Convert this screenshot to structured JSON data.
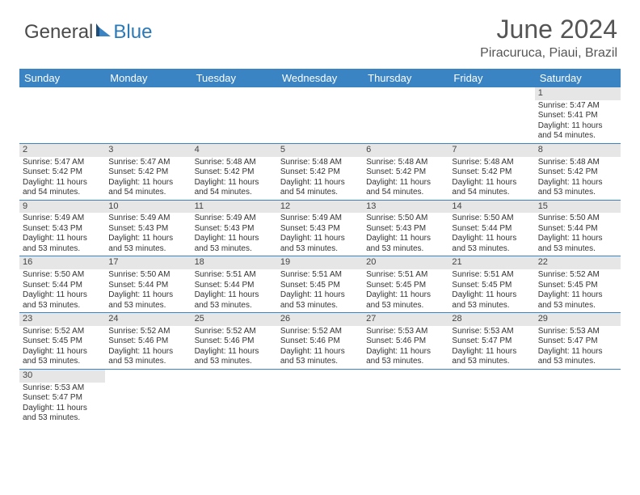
{
  "brand": {
    "part1": "General",
    "part2": "Blue"
  },
  "title": "June 2024",
  "location": "Piracuruca, Piaui, Brazil",
  "style": {
    "header_bg": "#3a84c4",
    "header_fg": "#ffffff",
    "daynum_bg": "#e6e6e6",
    "rule_color": "#3a84c4",
    "title_color": "#555555",
    "text_color": "#333333",
    "brand_gray": "#4a4a4a",
    "brand_blue": "#2a7ab8"
  },
  "day_names": [
    "Sunday",
    "Monday",
    "Tuesday",
    "Wednesday",
    "Thursday",
    "Friday",
    "Saturday"
  ],
  "weeks": [
    [
      null,
      null,
      null,
      null,
      null,
      null,
      {
        "n": "1",
        "sr": "5:47 AM",
        "ss": "5:41 PM",
        "dl": "11 hours and 54 minutes."
      }
    ],
    [
      {
        "n": "2",
        "sr": "5:47 AM",
        "ss": "5:42 PM",
        "dl": "11 hours and 54 minutes."
      },
      {
        "n": "3",
        "sr": "5:47 AM",
        "ss": "5:42 PM",
        "dl": "11 hours and 54 minutes."
      },
      {
        "n": "4",
        "sr": "5:48 AM",
        "ss": "5:42 PM",
        "dl": "11 hours and 54 minutes."
      },
      {
        "n": "5",
        "sr": "5:48 AM",
        "ss": "5:42 PM",
        "dl": "11 hours and 54 minutes."
      },
      {
        "n": "6",
        "sr": "5:48 AM",
        "ss": "5:42 PM",
        "dl": "11 hours and 54 minutes."
      },
      {
        "n": "7",
        "sr": "5:48 AM",
        "ss": "5:42 PM",
        "dl": "11 hours and 54 minutes."
      },
      {
        "n": "8",
        "sr": "5:48 AM",
        "ss": "5:42 PM",
        "dl": "11 hours and 53 minutes."
      }
    ],
    [
      {
        "n": "9",
        "sr": "5:49 AM",
        "ss": "5:43 PM",
        "dl": "11 hours and 53 minutes."
      },
      {
        "n": "10",
        "sr": "5:49 AM",
        "ss": "5:43 PM",
        "dl": "11 hours and 53 minutes."
      },
      {
        "n": "11",
        "sr": "5:49 AM",
        "ss": "5:43 PM",
        "dl": "11 hours and 53 minutes."
      },
      {
        "n": "12",
        "sr": "5:49 AM",
        "ss": "5:43 PM",
        "dl": "11 hours and 53 minutes."
      },
      {
        "n": "13",
        "sr": "5:50 AM",
        "ss": "5:43 PM",
        "dl": "11 hours and 53 minutes."
      },
      {
        "n": "14",
        "sr": "5:50 AM",
        "ss": "5:44 PM",
        "dl": "11 hours and 53 minutes."
      },
      {
        "n": "15",
        "sr": "5:50 AM",
        "ss": "5:44 PM",
        "dl": "11 hours and 53 minutes."
      }
    ],
    [
      {
        "n": "16",
        "sr": "5:50 AM",
        "ss": "5:44 PM",
        "dl": "11 hours and 53 minutes."
      },
      {
        "n": "17",
        "sr": "5:50 AM",
        "ss": "5:44 PM",
        "dl": "11 hours and 53 minutes."
      },
      {
        "n": "18",
        "sr": "5:51 AM",
        "ss": "5:44 PM",
        "dl": "11 hours and 53 minutes."
      },
      {
        "n": "19",
        "sr": "5:51 AM",
        "ss": "5:45 PM",
        "dl": "11 hours and 53 minutes."
      },
      {
        "n": "20",
        "sr": "5:51 AM",
        "ss": "5:45 PM",
        "dl": "11 hours and 53 minutes."
      },
      {
        "n": "21",
        "sr": "5:51 AM",
        "ss": "5:45 PM",
        "dl": "11 hours and 53 minutes."
      },
      {
        "n": "22",
        "sr": "5:52 AM",
        "ss": "5:45 PM",
        "dl": "11 hours and 53 minutes."
      }
    ],
    [
      {
        "n": "23",
        "sr": "5:52 AM",
        "ss": "5:45 PM",
        "dl": "11 hours and 53 minutes."
      },
      {
        "n": "24",
        "sr": "5:52 AM",
        "ss": "5:46 PM",
        "dl": "11 hours and 53 minutes."
      },
      {
        "n": "25",
        "sr": "5:52 AM",
        "ss": "5:46 PM",
        "dl": "11 hours and 53 minutes."
      },
      {
        "n": "26",
        "sr": "5:52 AM",
        "ss": "5:46 PM",
        "dl": "11 hours and 53 minutes."
      },
      {
        "n": "27",
        "sr": "5:53 AM",
        "ss": "5:46 PM",
        "dl": "11 hours and 53 minutes."
      },
      {
        "n": "28",
        "sr": "5:53 AM",
        "ss": "5:47 PM",
        "dl": "11 hours and 53 minutes."
      },
      {
        "n": "29",
        "sr": "5:53 AM",
        "ss": "5:47 PM",
        "dl": "11 hours and 53 minutes."
      }
    ],
    [
      {
        "n": "30",
        "sr": "5:53 AM",
        "ss": "5:47 PM",
        "dl": "11 hours and 53 minutes."
      },
      null,
      null,
      null,
      null,
      null,
      null
    ]
  ],
  "labels": {
    "sunrise": "Sunrise:",
    "sunset": "Sunset:",
    "daylight": "Daylight:"
  }
}
